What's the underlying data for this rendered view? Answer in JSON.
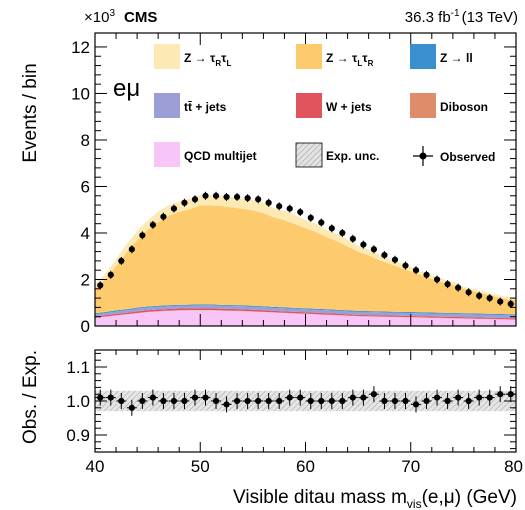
{
  "chart_data": [
    {
      "type": "area",
      "stacked": true,
      "ylabel": "Events / bin",
      "y_multiplier_label": "×10",
      "y_multiplier_exp": "3",
      "experiment": "CMS",
      "lumi_label": "36.3 fb",
      "lumi_exp": "-1",
      "energy_label": "(13 TeV)",
      "channel": "eμ",
      "xlim": [
        40,
        80
      ],
      "ylim": [
        0,
        12.6
      ],
      "y_ticks": [
        "0",
        "2",
        "4",
        "6",
        "8",
        "10",
        "12"
      ],
      "x": [
        40,
        41,
        42,
        43,
        44,
        45,
        46,
        47,
        48,
        49,
        50,
        51,
        52,
        53,
        54,
        55,
        56,
        57,
        58,
        59,
        60,
        61,
        62,
        63,
        64,
        65,
        66,
        67,
        68,
        69,
        70,
        71,
        72,
        73,
        74,
        75,
        76,
        77,
        78,
        79,
        80
      ],
      "legend": {
        "ztt_r": "Z → τ",
        "ztt_l": "Z → τ",
        "zll": "Z → ll",
        "ttbar": "tt̄ + jets",
        "wjets": "W + jets",
        "diboson": "Diboson",
        "qcd": "QCD multijet",
        "unc": "Exp. unc.",
        "obs": "Observed"
      },
      "series": [
        {
          "key": "qcd",
          "color": "#f7c6f7",
          "values": [
            0.35,
            0.4,
            0.45,
            0.5,
            0.55,
            0.6,
            0.63,
            0.65,
            0.67,
            0.68,
            0.68,
            0.68,
            0.66,
            0.65,
            0.64,
            0.62,
            0.6,
            0.58,
            0.56,
            0.54,
            0.52,
            0.5,
            0.48,
            0.46,
            0.44,
            0.42,
            0.41,
            0.4,
            0.39,
            0.38,
            0.37,
            0.36,
            0.35,
            0.34,
            0.33,
            0.32,
            0.31,
            0.3,
            0.29,
            0.28,
            0.27
          ]
        },
        {
          "key": "diboson",
          "color": "#de8c6a",
          "values": [
            0.01,
            0.01,
            0.01,
            0.01,
            0.01,
            0.01,
            0.01,
            0.01,
            0.01,
            0.01,
            0.01,
            0.01,
            0.01,
            0.01,
            0.01,
            0.01,
            0.01,
            0.01,
            0.01,
            0.01,
            0.01,
            0.01,
            0.01,
            0.01,
            0.01,
            0.01,
            0.01,
            0.01,
            0.01,
            0.01,
            0.01,
            0.01,
            0.01,
            0.01,
            0.01,
            0.01,
            0.01,
            0.01,
            0.01,
            0.01,
            0.01
          ]
        },
        {
          "key": "wjets",
          "color": "#e2545d",
          "values": [
            0.05,
            0.05,
            0.06,
            0.06,
            0.07,
            0.07,
            0.07,
            0.07,
            0.07,
            0.07,
            0.07,
            0.07,
            0.07,
            0.07,
            0.07,
            0.07,
            0.07,
            0.06,
            0.06,
            0.06,
            0.06,
            0.06,
            0.06,
            0.06,
            0.05,
            0.05,
            0.05,
            0.05,
            0.05,
            0.05,
            0.05,
            0.05,
            0.05,
            0.05,
            0.05,
            0.05,
            0.05,
            0.05,
            0.05,
            0.05,
            0.05
          ]
        },
        {
          "key": "ttbar",
          "color": "#9c9fd6",
          "values": [
            0.1,
            0.1,
            0.11,
            0.11,
            0.12,
            0.12,
            0.12,
            0.12,
            0.12,
            0.12,
            0.13,
            0.13,
            0.13,
            0.13,
            0.13,
            0.13,
            0.13,
            0.13,
            0.13,
            0.13,
            0.13,
            0.13,
            0.13,
            0.13,
            0.13,
            0.13,
            0.13,
            0.13,
            0.13,
            0.13,
            0.13,
            0.13,
            0.13,
            0.13,
            0.13,
            0.13,
            0.13,
            0.13,
            0.13,
            0.13,
            0.13
          ]
        },
        {
          "key": "zll",
          "color": "#3a8fcf",
          "values": [
            0.04,
            0.04,
            0.04,
            0.04,
            0.04,
            0.04,
            0.04,
            0.04,
            0.04,
            0.04,
            0.04,
            0.04,
            0.04,
            0.04,
            0.04,
            0.04,
            0.04,
            0.04,
            0.04,
            0.04,
            0.04,
            0.04,
            0.04,
            0.04,
            0.04,
            0.04,
            0.04,
            0.04,
            0.04,
            0.04,
            0.04,
            0.04,
            0.04,
            0.04,
            0.04,
            0.04,
            0.04,
            0.04,
            0.04,
            0.04,
            0.04
          ]
        },
        {
          "key": "ztt_l",
          "color": "#fdcb6e",
          "values": [
            1.05,
            1.4,
            1.9,
            2.45,
            2.9,
            3.3,
            3.6,
            3.85,
            4.0,
            4.1,
            4.25,
            4.25,
            4.25,
            4.2,
            4.15,
            4.1,
            4.0,
            3.85,
            3.75,
            3.6,
            3.45,
            3.3,
            3.1,
            2.95,
            2.75,
            2.55,
            2.4,
            2.2,
            2.05,
            1.9,
            1.75,
            1.6,
            1.45,
            1.3,
            1.2,
            1.05,
            0.95,
            0.85,
            0.75,
            0.65,
            0.62
          ]
        },
        {
          "key": "ztt_r",
          "color": "#fde9b4",
          "values": [
            0.2,
            0.25,
            0.3,
            0.35,
            0.4,
            0.4,
            0.45,
            0.45,
            0.45,
            0.45,
            0.45,
            0.45,
            0.45,
            0.45,
            0.45,
            0.45,
            0.45,
            0.4,
            0.4,
            0.4,
            0.35,
            0.35,
            0.3,
            0.3,
            0.3,
            0.25,
            0.25,
            0.25,
            0.2,
            0.2,
            0.2,
            0.15,
            0.15,
            0.15,
            0.15,
            0.1,
            0.1,
            0.1,
            0.1,
            0.1,
            0.1
          ]
        }
      ],
      "observed": {
        "x": [
          40.5,
          41.5,
          42.5,
          43.5,
          44.5,
          45.5,
          46.5,
          47.5,
          48.5,
          49.5,
          50.5,
          51.5,
          52.5,
          53.5,
          54.5,
          55.5,
          56.5,
          57.5,
          58.5,
          59.5,
          60.5,
          61.5,
          62.5,
          63.5,
          64.5,
          65.5,
          66.5,
          67.5,
          68.5,
          69.5,
          70.5,
          71.5,
          72.5,
          73.5,
          74.5,
          75.5,
          76.5,
          77.5,
          78.5,
          79.5
        ],
        "values": [
          1.75,
          2.2,
          2.8,
          3.3,
          3.9,
          4.35,
          4.7,
          5.05,
          5.3,
          5.45,
          5.6,
          5.6,
          5.55,
          5.55,
          5.5,
          5.45,
          5.3,
          5.15,
          5.05,
          4.9,
          4.65,
          4.45,
          4.2,
          4.0,
          3.75,
          3.5,
          3.3,
          3.05,
          2.85,
          2.6,
          2.4,
          2.2,
          2.0,
          1.8,
          1.65,
          1.45,
          1.3,
          1.2,
          1.05,
          0.95
        ]
      }
    },
    {
      "type": "scatter",
      "ylabel": "Obs. / Exp.",
      "xlabel": "Visible ditau mass m",
      "xlabel_sub": "vis",
      "xlabel_tail": "(e,μ) (GeV)",
      "xlim": [
        40,
        80
      ],
      "ylim": [
        0.85,
        1.15
      ],
      "y_ticks": [
        "0.9",
        "1.0",
        "1.1"
      ],
      "x_ticks": [
        "40",
        "50",
        "60",
        "70",
        "80"
      ],
      "unc_band": 0.03,
      "x": [
        40.5,
        41.5,
        42.5,
        43.5,
        44.5,
        45.5,
        46.5,
        47.5,
        48.5,
        49.5,
        50.5,
        51.5,
        52.5,
        53.5,
        54.5,
        55.5,
        56.5,
        57.5,
        58.5,
        59.5,
        60.5,
        61.5,
        62.5,
        63.5,
        64.5,
        65.5,
        66.5,
        67.5,
        68.5,
        69.5,
        70.5,
        71.5,
        72.5,
        73.5,
        74.5,
        75.5,
        76.5,
        77.5,
        78.5,
        79.5
      ],
      "values": [
        1.01,
        1.01,
        1.0,
        0.98,
        1.0,
        1.01,
        1.0,
        1.0,
        1.0,
        1.01,
        1.01,
        1.0,
        0.99,
        1.0,
        1.0,
        1.0,
        1.0,
        1.0,
        1.01,
        1.01,
        1.0,
        1.0,
        1.0,
        1.0,
        1.01,
        1.01,
        1.02,
        1.0,
        1.0,
        1.0,
        0.99,
        1.0,
        1.01,
        1.0,
        1.01,
        1.0,
        1.01,
        1.01,
        1.02,
        1.02
      ]
    }
  ]
}
